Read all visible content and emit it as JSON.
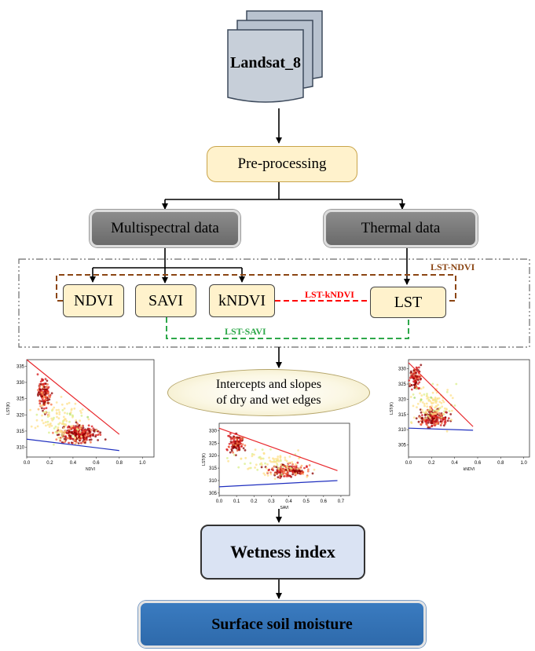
{
  "source": {
    "label": "Landsat_8"
  },
  "preprocessing": {
    "label": "Pre-processing"
  },
  "branches": {
    "multispectral": "Multispectral data",
    "thermal": "Thermal data"
  },
  "indices": {
    "ndvi": "NDVI",
    "savi": "SAVI",
    "kndvi": "kNDVI",
    "lst": "LST"
  },
  "pairs": {
    "lst_ndvi": "LST-NDVI",
    "lst_kndvi": "LST-kNDVI",
    "lst_savi": "LST-SAVI"
  },
  "edges_step": {
    "line1": "Intercepts and slopes",
    "line2": "of dry and wet edges"
  },
  "wetness": {
    "label": "Wetness index"
  },
  "output": {
    "label": "Surface soil moisture"
  },
  "colors": {
    "lst_ndvi_line": "#8b4513",
    "lst_kndvi_line": "#ff0000",
    "lst_savi_line": "#2ea84a",
    "dry_edge": "#e8262b",
    "wet_edge": "#1f2fbf"
  },
  "plots": [
    {
      "id": "plot-ndvi",
      "xlabel": "NDVI",
      "ylabel": "LST(K)",
      "xticks": [
        "0.0",
        "0.2",
        "0.4",
        "0.6",
        "0.8",
        "1.0"
      ],
      "yticks": [
        "310",
        "315",
        "320",
        "325",
        "330",
        "335"
      ],
      "xlim": [
        0,
        1.1
      ],
      "ylim": [
        307,
        337
      ],
      "dry_edge": [
        [
          0.0,
          337
        ],
        [
          0.8,
          314
        ]
      ],
      "wet_edge": [
        [
          0.0,
          312.5
        ],
        [
          0.8,
          309
        ]
      ]
    },
    {
      "id": "plot-savi",
      "xlabel": "SAVI",
      "ylabel": "LST(K)",
      "xticks": [
        "0.0",
        "0.1",
        "0.2",
        "0.3",
        "0.4",
        "0.5",
        "0.6",
        "0.7"
      ],
      "yticks": [
        "305",
        "310",
        "315",
        "320",
        "325",
        "330"
      ],
      "xlim": [
        0,
        0.75
      ],
      "ylim": [
        304,
        333
      ],
      "dry_edge": [
        [
          0.0,
          331
        ],
        [
          0.68,
          314
        ]
      ],
      "wet_edge": [
        [
          0.0,
          307.5
        ],
        [
          0.68,
          310
        ]
      ]
    },
    {
      "id": "plot-kndvi",
      "xlabel": "kNDVI",
      "ylabel": "LST(K)",
      "xticks": [
        "0.0",
        "0.2",
        "0.4",
        "0.6",
        "0.8",
        "1.0"
      ],
      "yticks": [
        "305",
        "310",
        "315",
        "320",
        "325",
        "330"
      ],
      "xlim": [
        0,
        1.05
      ],
      "ylim": [
        301,
        333
      ],
      "dry_edge": [
        [
          0.0,
          332
        ],
        [
          0.56,
          311
        ]
      ],
      "wet_edge": [
        [
          0.0,
          310.5
        ],
        [
          0.56,
          309.8
        ]
      ]
    }
  ]
}
